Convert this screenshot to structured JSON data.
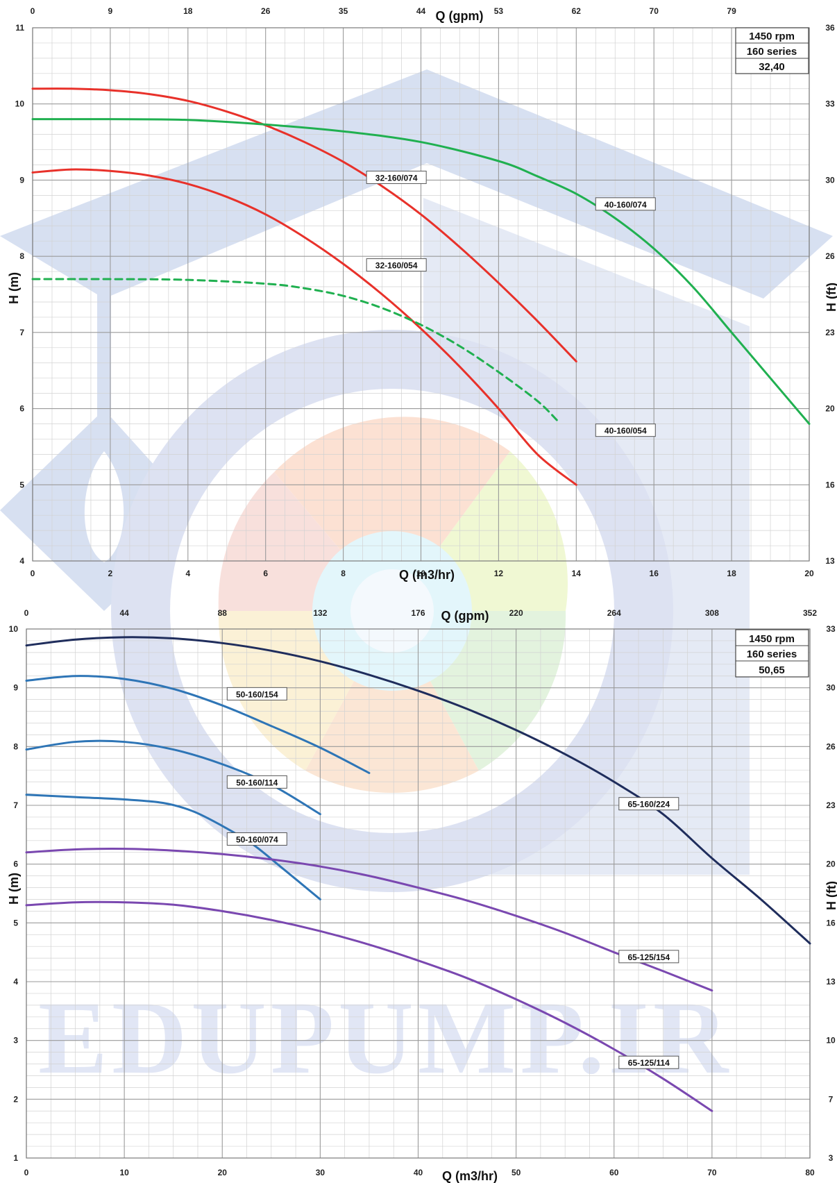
{
  "watermark": {
    "logo_text": "EDUPUMP.IR"
  },
  "chart_data": [
    {
      "type": "line",
      "info_box": [
        "1450 rpm",
        "160 series",
        "32,40"
      ],
      "xlabel": "Q (m3/hr)",
      "ylabel": "H (m)",
      "x2label": "Q (gpm)",
      "y2label": "H (ft)",
      "xlim": [
        0,
        20
      ],
      "ylim": [
        4,
        11
      ],
      "x_ticks": [
        "0",
        "2",
        "4",
        "6",
        "8",
        "10",
        "12",
        "14",
        "16",
        "18",
        "20"
      ],
      "y_ticks": [
        "4",
        "5",
        "6",
        "7",
        "8",
        "9",
        "10",
        "11"
      ],
      "x2_ticks": [
        "0",
        "9",
        "18",
        "26",
        "35",
        "44",
        "53",
        "62",
        "70",
        "79"
      ],
      "y2_ticks": [
        "13",
        "16",
        "20",
        "23",
        "26",
        "30",
        "33",
        "36"
      ],
      "grid": true,
      "series": [
        {
          "name": "32-160/074",
          "color": "#e8312a",
          "dashed": false,
          "x": [
            0,
            1,
            2,
            3,
            4,
            5,
            6,
            7,
            8,
            9,
            10,
            11,
            12,
            13,
            14
          ],
          "y": [
            10.2,
            10.2,
            10.18,
            10.13,
            10.04,
            9.9,
            9.72,
            9.5,
            9.24,
            8.92,
            8.55,
            8.12,
            7.65,
            7.15,
            6.62
          ],
          "label_at": [
            8.6,
            9.0
          ]
        },
        {
          "name": "32-160/054",
          "color": "#e8312a",
          "dashed": false,
          "x": [
            0,
            1,
            2,
            3,
            4,
            5,
            6,
            7,
            8,
            9,
            10,
            11,
            12,
            13,
            14
          ],
          "y": [
            9.1,
            9.14,
            9.12,
            9.06,
            8.95,
            8.78,
            8.55,
            8.25,
            7.9,
            7.5,
            7.05,
            6.55,
            6.0,
            5.4,
            5.0
          ],
          "label_at": [
            8.6,
            7.85
          ]
        },
        {
          "name": "40-160/074",
          "color": "#20b050",
          "dashed": false,
          "x": [
            0,
            2,
            4,
            6,
            8,
            10,
            12,
            13,
            14,
            15,
            16,
            17,
            18,
            19,
            20
          ],
          "y": [
            9.8,
            9.8,
            9.79,
            9.73,
            9.64,
            9.5,
            9.25,
            9.05,
            8.82,
            8.5,
            8.1,
            7.6,
            7.0,
            6.4,
            5.8
          ],
          "label_at": [
            14.5,
            8.65
          ]
        },
        {
          "name": "40-160/054",
          "color": "#20b050",
          "dashed": true,
          "x": [
            0,
            2,
            4,
            6,
            7,
            8,
            9,
            10,
            11,
            12,
            13,
            13.5
          ],
          "y": [
            7.7,
            7.7,
            7.69,
            7.64,
            7.58,
            7.48,
            7.32,
            7.1,
            6.82,
            6.48,
            6.1,
            5.85
          ],
          "label_at": [
            14.5,
            5.68
          ]
        }
      ]
    },
    {
      "type": "line",
      "info_box": [
        "1450 rpm",
        "160 series",
        "50,65"
      ],
      "xlabel": "Q (m3/hr)",
      "ylabel": "H (m)",
      "x2label": "Q (gpm)",
      "y2label": "H (ft)",
      "xlim": [
        0,
        80
      ],
      "ylim": [
        1,
        10
      ],
      "x_ticks": [
        "0",
        "10",
        "20",
        "30",
        "40",
        "50",
        "60",
        "70",
        "80"
      ],
      "y_ticks": [
        "1",
        "2",
        "3",
        "4",
        "5",
        "6",
        "7",
        "8",
        "9",
        "10"
      ],
      "x2_ticks": [
        "0",
        "44",
        "88",
        "132",
        "176",
        "220",
        "264",
        "308",
        "352"
      ],
      "y2_ticks": [
        "3",
        "7",
        "10",
        "13",
        "16",
        "20",
        "23",
        "26",
        "30",
        "33"
      ],
      "grid": true,
      "series": [
        {
          "name": "65-160/224",
          "color": "#1f2d5c",
          "dashed": false,
          "x": [
            0,
            5,
            10,
            15,
            20,
            25,
            30,
            35,
            40,
            45,
            50,
            55,
            60,
            65,
            70,
            75,
            80
          ],
          "y": [
            9.72,
            9.82,
            9.86,
            9.84,
            9.76,
            9.63,
            9.45,
            9.22,
            8.95,
            8.64,
            8.28,
            7.87,
            7.4,
            6.85,
            6.1,
            5.4,
            4.65
          ],
          "label_at": [
            60.5,
            6.98
          ]
        },
        {
          "name": "50-160/154",
          "color": "#2e75b6",
          "dashed": false,
          "x": [
            0,
            5,
            10,
            15,
            20,
            25,
            30,
            35
          ],
          "y": [
            9.12,
            9.2,
            9.15,
            8.98,
            8.7,
            8.35,
            7.98,
            7.55
          ],
          "label_at": [
            20.5,
            8.85
          ]
        },
        {
          "name": "50-160/114",
          "color": "#2e75b6",
          "dashed": false,
          "x": [
            0,
            5,
            10,
            15,
            20,
            25,
            30
          ],
          "y": [
            7.95,
            8.08,
            8.08,
            7.95,
            7.7,
            7.35,
            6.85
          ],
          "label_at": [
            20.5,
            7.35
          ]
        },
        {
          "name": "50-160/074",
          "color": "#2e75b6",
          "dashed": false,
          "x": [
            0,
            5,
            10,
            14,
            17,
            20,
            23,
            26,
            30
          ],
          "y": [
            7.18,
            7.14,
            7.1,
            7.04,
            6.9,
            6.65,
            6.35,
            5.95,
            5.4
          ],
          "label_at": [
            20.5,
            6.38
          ]
        },
        {
          "name": "65-125/154",
          "color": "#7a48b0",
          "dashed": false,
          "x": [
            0,
            5,
            10,
            15,
            20,
            25,
            30,
            35,
            40,
            45,
            50,
            55,
            60,
            65,
            70
          ],
          "y": [
            6.2,
            6.25,
            6.26,
            6.23,
            6.17,
            6.08,
            5.96,
            5.8,
            5.6,
            5.38,
            5.12,
            4.83,
            4.5,
            4.18,
            3.85
          ],
          "label_at": [
            60.5,
            4.38
          ]
        },
        {
          "name": "65-125/114",
          "color": "#7a48b0",
          "dashed": false,
          "x": [
            0,
            5,
            10,
            15,
            20,
            25,
            30,
            35,
            40,
            45,
            50,
            55,
            60,
            65,
            70
          ],
          "y": [
            5.3,
            5.35,
            5.35,
            5.31,
            5.2,
            5.05,
            4.86,
            4.63,
            4.36,
            4.06,
            3.7,
            3.3,
            2.85,
            2.35,
            1.8
          ],
          "label_at": [
            60.5,
            2.58
          ]
        }
      ]
    }
  ]
}
